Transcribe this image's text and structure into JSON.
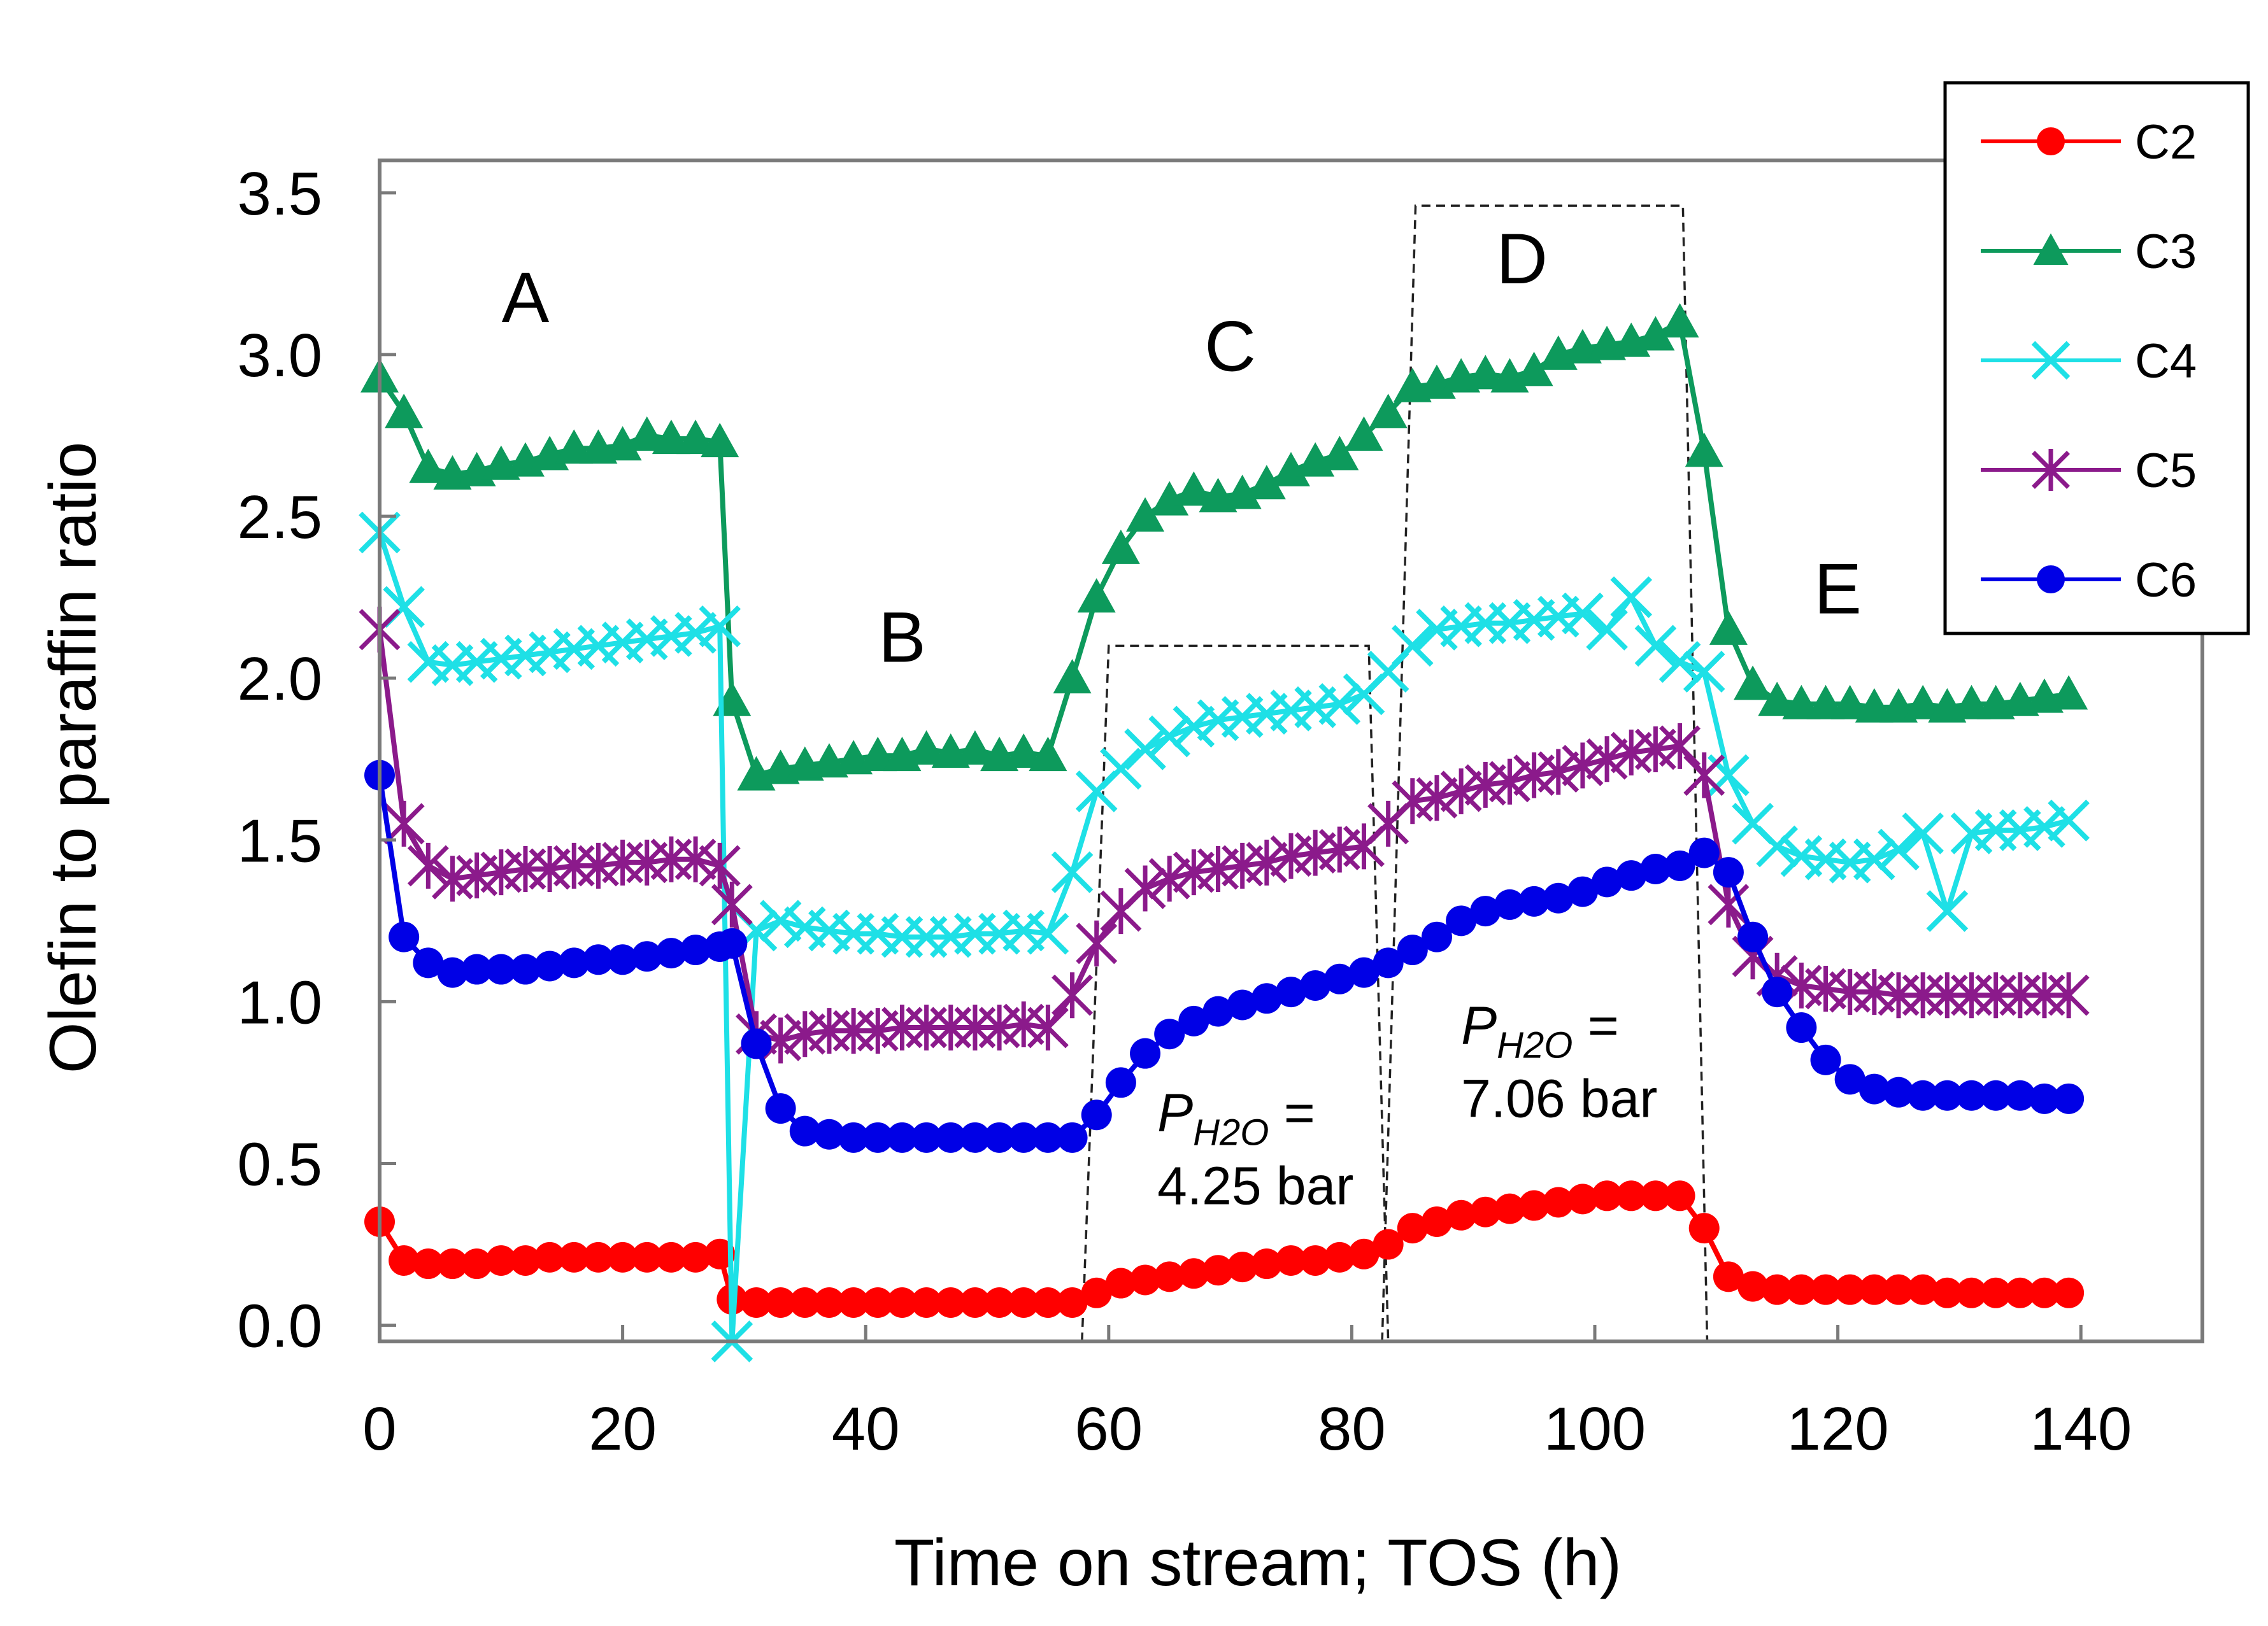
{
  "chart_data": {
    "type": "line",
    "xlabel": "Time on stream; TOS (h)",
    "ylabel": "Olefin to paraffin ratio",
    "xlim": [
      0,
      150
    ],
    "ylim": [
      -0.05,
      3.6
    ],
    "xticks": [
      0,
      20,
      40,
      60,
      80,
      100,
      120,
      140
    ],
    "xtick_labels": [
      "0",
      "20",
      "40",
      "60",
      "80",
      "100",
      "120",
      "140"
    ],
    "yticks": [
      0.0,
      0.5,
      1.0,
      1.5,
      2.0,
      2.5,
      3.0,
      3.5
    ],
    "ytick_labels": [
      "0.0",
      "0.5",
      "1.0",
      "1.5",
      "2.0",
      "2.5",
      "3.0",
      "3.5"
    ],
    "x": [
      0,
      2,
      4,
      6,
      8,
      10,
      12,
      14,
      16,
      18,
      20,
      22,
      24,
      26,
      28,
      29,
      31,
      33,
      35,
      37,
      39,
      41,
      43,
      45,
      47,
      49,
      51,
      53,
      55,
      57,
      59,
      61,
      63,
      65,
      67,
      69,
      71,
      73,
      75,
      77,
      79,
      81,
      83,
      85,
      87,
      89,
      91,
      93,
      95,
      97,
      99,
      101,
      103,
      105,
      107,
      109,
      111,
      113,
      115,
      117,
      119,
      121,
      123,
      125,
      127,
      129,
      131,
      133,
      135,
      137,
      139
    ],
    "series": [
      {
        "name": "C2",
        "color": "#ff0000",
        "marker": "circle",
        "values": [
          0.32,
          0.2,
          0.19,
          0.19,
          0.19,
          0.2,
          0.2,
          0.21,
          0.21,
          0.21,
          0.21,
          0.21,
          0.21,
          0.21,
          0.22,
          0.08,
          0.07,
          0.07,
          0.07,
          0.07,
          0.07,
          0.07,
          0.07,
          0.07,
          0.07,
          0.07,
          0.07,
          0.07,
          0.07,
          0.07,
          0.1,
          0.13,
          0.14,
          0.15,
          0.16,
          0.17,
          0.18,
          0.19,
          0.2,
          0.2,
          0.21,
          0.22,
          0.25,
          0.3,
          0.32,
          0.34,
          0.35,
          0.36,
          0.37,
          0.38,
          0.39,
          0.4,
          0.4,
          0.4,
          0.4,
          0.3,
          0.15,
          0.12,
          0.11,
          0.11,
          0.11,
          0.11,
          0.11,
          0.11,
          0.11,
          0.1,
          0.1,
          0.1,
          0.1,
          0.1,
          0.1
        ]
      },
      {
        "name": "C3",
        "color": "#0d9a5c",
        "marker": "triangle",
        "values": [
          2.93,
          2.82,
          2.65,
          2.63,
          2.64,
          2.66,
          2.67,
          2.69,
          2.71,
          2.71,
          2.72,
          2.75,
          2.74,
          2.74,
          2.73,
          1.93,
          1.7,
          1.72,
          1.73,
          1.74,
          1.75,
          1.76,
          1.76,
          1.78,
          1.77,
          1.78,
          1.76,
          1.77,
          1.76,
          2.0,
          2.25,
          2.4,
          2.5,
          2.55,
          2.58,
          2.56,
          2.57,
          2.6,
          2.64,
          2.67,
          2.69,
          2.75,
          2.82,
          2.9,
          2.91,
          2.93,
          2.94,
          2.93,
          2.95,
          3.0,
          3.02,
          3.03,
          3.04,
          3.06,
          3.1,
          2.7,
          2.15,
          1.98,
          1.93,
          1.92,
          1.92,
          1.92,
          1.91,
          1.91,
          1.92,
          1.91,
          1.92,
          1.92,
          1.93,
          1.94,
          1.95
        ]
      },
      {
        "name": "C4",
        "color": "#1ee0e6",
        "marker": "x",
        "values": [
          2.45,
          2.22,
          2.05,
          2.04,
          2.05,
          2.06,
          2.07,
          2.08,
          2.09,
          2.1,
          2.11,
          2.12,
          2.13,
          2.14,
          2.16,
          -0.05,
          1.22,
          1.25,
          1.23,
          1.22,
          1.21,
          1.21,
          1.2,
          1.2,
          1.2,
          1.21,
          1.21,
          1.22,
          1.21,
          1.4,
          1.65,
          1.72,
          1.78,
          1.82,
          1.85,
          1.87,
          1.88,
          1.89,
          1.9,
          1.91,
          1.92,
          1.95,
          2.02,
          2.1,
          2.15,
          2.16,
          2.17,
          2.17,
          2.18,
          2.19,
          2.2,
          2.15,
          2.25,
          2.1,
          2.05,
          2.02,
          1.7,
          1.55,
          1.48,
          1.45,
          1.44,
          1.43,
          1.44,
          1.47,
          1.52,
          1.28,
          1.52,
          1.53,
          1.53,
          1.54,
          1.56
        ]
      },
      {
        "name": "C5",
        "color": "#8b1a8b",
        "marker": "star",
        "values": [
          2.15,
          1.55,
          1.42,
          1.38,
          1.39,
          1.4,
          1.41,
          1.41,
          1.42,
          1.42,
          1.43,
          1.43,
          1.44,
          1.44,
          1.42,
          1.3,
          0.9,
          0.88,
          0.9,
          0.91,
          0.91,
          0.91,
          0.92,
          0.92,
          0.92,
          0.92,
          0.92,
          0.93,
          0.92,
          1.02,
          1.18,
          1.28,
          1.35,
          1.38,
          1.4,
          1.41,
          1.42,
          1.43,
          1.45,
          1.46,
          1.47,
          1.48,
          1.55,
          1.62,
          1.63,
          1.65,
          1.67,
          1.68,
          1.7,
          1.71,
          1.73,
          1.75,
          1.77,
          1.78,
          1.79,
          1.7,
          1.3,
          1.14,
          1.08,
          1.05,
          1.04,
          1.03,
          1.03,
          1.02,
          1.02,
          1.02,
          1.02,
          1.02,
          1.02,
          1.02,
          1.02
        ]
      },
      {
        "name": "C6",
        "color": "#0000e6",
        "marker": "circle",
        "values": [
          1.7,
          1.2,
          1.12,
          1.09,
          1.1,
          1.1,
          1.1,
          1.11,
          1.12,
          1.13,
          1.13,
          1.14,
          1.15,
          1.16,
          1.17,
          1.18,
          0.87,
          0.67,
          0.6,
          0.59,
          0.58,
          0.58,
          0.58,
          0.58,
          0.58,
          0.58,
          0.58,
          0.58,
          0.58,
          0.58,
          0.65,
          0.75,
          0.84,
          0.9,
          0.94,
          0.97,
          0.99,
          1.01,
          1.03,
          1.05,
          1.07,
          1.09,
          1.12,
          1.16,
          1.2,
          1.25,
          1.28,
          1.3,
          1.31,
          1.32,
          1.34,
          1.37,
          1.39,
          1.41,
          1.42,
          1.46,
          1.4,
          1.2,
          1.03,
          0.92,
          0.82,
          0.76,
          0.73,
          0.72,
          0.71,
          0.71,
          0.71,
          0.71,
          0.71,
          0.7,
          0.7
        ]
      }
    ],
    "region_labels": [
      {
        "text": "A",
        "x": 12,
        "y": 3.1
      },
      {
        "text": "B",
        "x": 43,
        "y": 2.05
      },
      {
        "text": "C",
        "x": 70,
        "y": 2.95
      },
      {
        "text": "D",
        "x": 94,
        "y": 3.22
      },
      {
        "text": "E",
        "x": 120,
        "y": 2.2
      }
    ],
    "annotations": [
      {
        "prefix": "P",
        "subscript": "H2O",
        "suffix": " =",
        "value_text": "4.25 bar",
        "x": 64,
        "y": 0.6
      },
      {
        "prefix": "P",
        "subscript": "H2O",
        "suffix": " =",
        "value_text": "7.06 bar",
        "x": 89,
        "y": 0.87
      }
    ],
    "dashed_boxes": [
      {
        "x0": 59,
        "x1": 82,
        "y_top": 2.1,
        "y_bottom": -0.05,
        "slant": 2
      },
      {
        "x0": 84,
        "x1": 108,
        "y_top": 3.46,
        "y_bottom": -0.05,
        "slant": 2.5
      }
    ],
    "legend_position": "top-right",
    "grid": false
  }
}
